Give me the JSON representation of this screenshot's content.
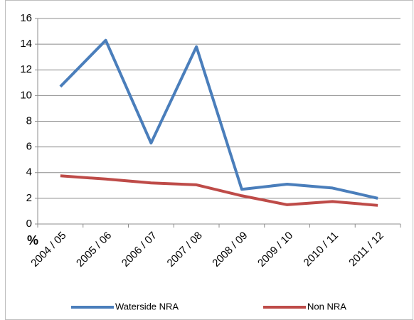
{
  "chart_data": {
    "type": "line",
    "y_label": "%",
    "categories": [
      "2004 / 05",
      "2005 / 06",
      "2006 / 07",
      "2007 / 08",
      "2008 / 09",
      "2009 / 10",
      "2010 / 11",
      "2011 / 12"
    ],
    "series": [
      {
        "name": "Waterside NRA",
        "color": "#4a7ebb",
        "values": [
          10.7,
          14.3,
          6.3,
          13.8,
          2.7,
          3.1,
          2.8,
          2.0
        ]
      },
      {
        "name": "Non NRA",
        "color": "#be4b48",
        "values": [
          3.75,
          3.5,
          3.2,
          3.05,
          2.2,
          1.5,
          1.75,
          1.45
        ]
      }
    ],
    "ylim": [
      0,
      16
    ],
    "yticks": [
      0,
      2,
      4,
      6,
      8,
      10,
      12,
      14,
      16
    ],
    "grid": true,
    "legend": "bottom"
  }
}
